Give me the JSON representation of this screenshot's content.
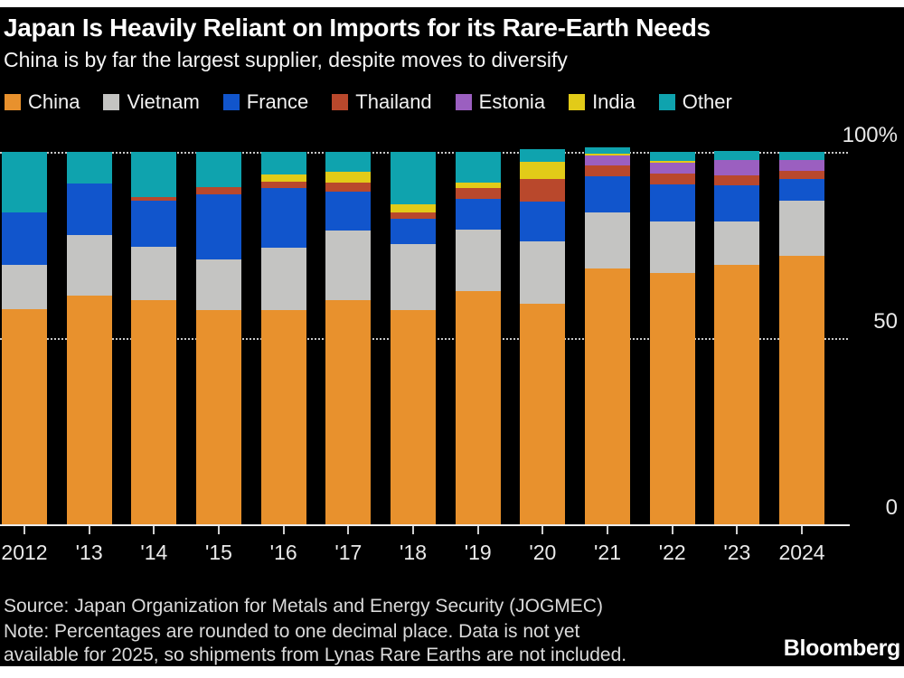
{
  "header": {
    "title": "Japan Is Heavily Reliant on Imports for its Rare-Earth Needs",
    "subtitle": "China is by far the largest supplier, despite moves to diversify"
  },
  "chart_data": {
    "type": "bar",
    "stacked": true,
    "unit": "percent",
    "title": "Japan Is Heavily Reliant on Imports for its Rare-Earth Needs",
    "subtitle": "China is by far the largest supplier, despite moves to diversify",
    "xlabel": "",
    "ylabel": "",
    "ylim": [
      0,
      100
    ],
    "grid": "horizontal dotted lines at 50 and 100, solid baseline at 0",
    "legend_position": "top",
    "categories": [
      "2012",
      "'13",
      "'14",
      "'15",
      "'16",
      "'17",
      "'18",
      "'19",
      "'20",
      "'21",
      "'22",
      "'23",
      "2024"
    ],
    "series": [
      {
        "name": "China",
        "color": "#E8912D",
        "values": [
          57.8,
          61.4,
          60.2,
          57.5,
          57.5,
          60.2,
          57.5,
          62.6,
          59.2,
          68.7,
          67.5,
          69.7,
          72.1
        ]
      },
      {
        "name": "Vietnam",
        "color": "#C4C4C2",
        "values": [
          11.9,
          16.3,
          14.3,
          13.6,
          16.7,
          18.7,
          17.7,
          16.5,
          16.7,
          15.0,
          13.8,
          11.7,
          14.8
        ]
      },
      {
        "name": "France",
        "color": "#1155CC",
        "values": [
          14.1,
          13.8,
          12.4,
          17.5,
          16.0,
          10.4,
          6.8,
          8.3,
          10.7,
          9.7,
          10.0,
          9.5,
          5.8
        ]
      },
      {
        "name": "Thailand",
        "color": "#B9482C",
        "values": [
          0,
          0,
          1.0,
          1.9,
          1.9,
          2.4,
          1.7,
          2.9,
          6.1,
          2.9,
          2.9,
          2.7,
          2.2
        ]
      },
      {
        "name": "Estonia",
        "color": "#9B5FC0",
        "values": [
          0,
          0,
          0,
          0,
          0,
          0,
          0,
          0,
          0,
          2.7,
          2.9,
          4.2,
          2.9
        ]
      },
      {
        "name": "India",
        "color": "#E2CB18",
        "values": [
          0,
          0,
          0,
          0,
          1.9,
          2.9,
          2.2,
          1.5,
          4.6,
          0.5,
          0.5,
          0,
          0
        ]
      },
      {
        "name": "Other",
        "color": "#0FA3AE",
        "values": [
          16.2,
          8.5,
          12.1,
          9.5,
          6.0,
          5.4,
          14.1,
          8.2,
          3.4,
          1.7,
          2.4,
          2.4,
          2.2
        ]
      }
    ],
    "yticks": [
      {
        "value": 100,
        "label": "100%"
      },
      {
        "value": 50,
        "label": "50"
      },
      {
        "value": 0,
        "label": "0"
      }
    ]
  },
  "footer": {
    "source": "Source: Japan Organization for Metals and Energy Security (JOGMEC)",
    "note_line1": "Note: Percentages are rounded to one decimal place. Data is not yet",
    "note_line2": "available for 2025, so shipments from Lynas Rare Earths are not included.",
    "brand": "Bloomberg"
  },
  "style": {
    "background": "#000000",
    "frame": "#ffffff",
    "text_primary": "#ffffff",
    "text_axis": "#e9e9e9",
    "text_footer": "#dadada",
    "gridline_color": "#c8c8c8"
  }
}
